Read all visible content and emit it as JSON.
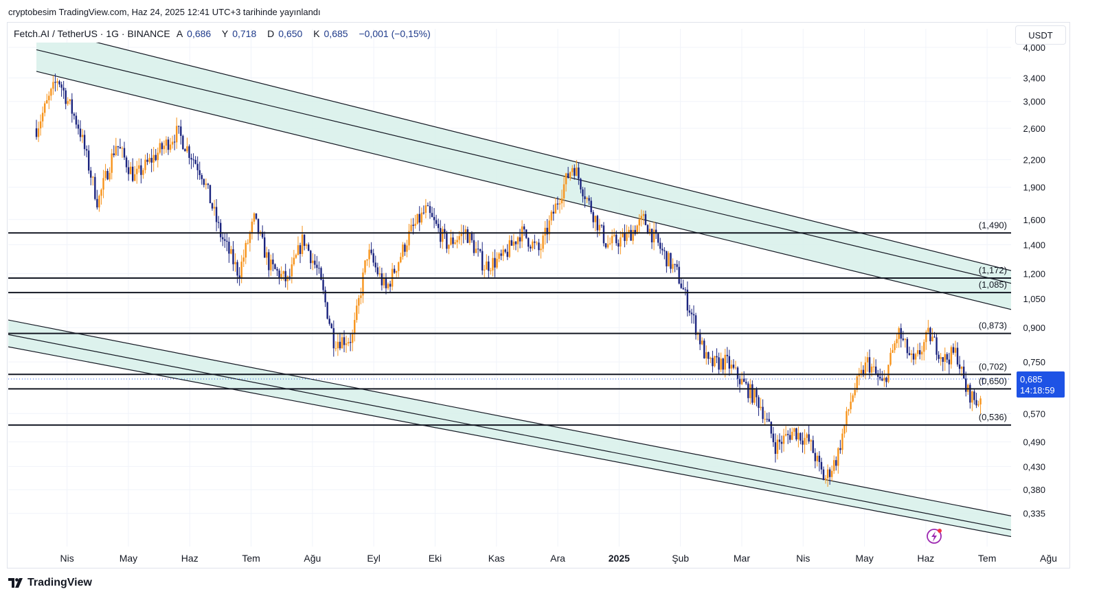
{
  "header": {
    "publisher_line": "cryptobesim TradingView.com, Haz 24, 2025 12:41 UTC+3 tarihinde yayınlandı"
  },
  "legend": {
    "symbol": "Fetch.AI / TetherUS · 1G · BINANCE",
    "open_label": "A",
    "open": "0,686",
    "high_label": "Y",
    "high": "0,718",
    "low_label": "D",
    "low": "0,650",
    "close_label": "K",
    "close": "0,685",
    "change": "−0,001 (−0,15%)"
  },
  "currency_button": "USDT",
  "brand": {
    "name": "TradingView",
    "icon": "tradingview-logo-icon"
  },
  "colors": {
    "up": "#f7931a",
    "down": "#1a237e",
    "channel_fill": "#d7f0ea",
    "price_tag": "#1e53e5",
    "grid": "#f0f3fa",
    "text": "#131722"
  },
  "chart_data": {
    "type": "candlestick",
    "symbol": "FETUSDT",
    "timeframe": "1D",
    "scale": "log",
    "ylim": [
      0.3,
      4.15
    ],
    "y_ticks": [
      {
        "v": 4.0,
        "label": "4,000"
      },
      {
        "v": 3.4,
        "label": "3,400"
      },
      {
        "v": 3.0,
        "label": "3,000"
      },
      {
        "v": 2.6,
        "label": "2,600"
      },
      {
        "v": 2.2,
        "label": "2,200"
      },
      {
        "v": 1.9,
        "label": "1,900"
      },
      {
        "v": 1.6,
        "label": "1,600"
      },
      {
        "v": 1.4,
        "label": "1,400"
      },
      {
        "v": 1.2,
        "label": "1,200"
      },
      {
        "v": 1.05,
        "label": "1,050"
      },
      {
        "v": 0.9,
        "label": "0,900"
      },
      {
        "v": 0.75,
        "label": "0,750"
      },
      {
        "v": 0.57,
        "label": "0,570"
      },
      {
        "v": 0.49,
        "label": "0,490"
      },
      {
        "v": 0.43,
        "label": "0,430"
      },
      {
        "v": 0.38,
        "label": "0,380"
      },
      {
        "v": 0.335,
        "label": "0,335"
      }
    ],
    "x_labels": [
      {
        "t": 0.5,
        "label": "Nis"
      },
      {
        "t": 1.5,
        "label": "May"
      },
      {
        "t": 2.5,
        "label": "Haz"
      },
      {
        "t": 3.5,
        "label": "Tem"
      },
      {
        "t": 4.5,
        "label": "Ağu"
      },
      {
        "t": 5.5,
        "label": "Eyl"
      },
      {
        "t": 6.5,
        "label": "Eki"
      },
      {
        "t": 7.5,
        "label": "Kas"
      },
      {
        "t": 8.5,
        "label": "Ara"
      },
      {
        "t": 9.5,
        "label": "2025",
        "bold": true
      },
      {
        "t": 10.5,
        "label": "Şub"
      },
      {
        "t": 11.5,
        "label": "Mar"
      },
      {
        "t": 12.5,
        "label": "Nis"
      },
      {
        "t": 13.5,
        "label": "May"
      },
      {
        "t": 14.5,
        "label": "Haz"
      },
      {
        "t": 15.5,
        "label": "Tem"
      },
      {
        "t": 16.5,
        "label": "Ağu"
      }
    ],
    "horizontal_levels": [
      {
        "v": 1.49,
        "label": "(1,490)"
      },
      {
        "v": 1.172,
        "label": "(1,172)"
      },
      {
        "v": 1.085,
        "label": "(1,085)"
      },
      {
        "v": 0.873,
        "label": "(0,873)"
      },
      {
        "v": 0.702,
        "label": "(0,702)"
      },
      {
        "v": 0.65,
        "label": "(0,650)"
      },
      {
        "v": 0.536,
        "label": "(0,536)"
      }
    ],
    "channels": [
      {
        "name": "upper-channel",
        "t0": 0.0,
        "t1": 16.4,
        "lines": [
          [
            4.45,
            1.17
          ],
          [
            3.95,
            1.095
          ],
          [
            3.52,
            0.952
          ]
        ]
      },
      {
        "name": "lower-channel",
        "t0": -0.5,
        "t1": 16.4,
        "lines": [
          [
            0.94,
            0.32
          ],
          [
            0.87,
            0.297
          ],
          [
            0.815,
            0.287
          ]
        ]
      }
    ],
    "last_price": {
      "value": "0,685",
      "v": 0.685,
      "countdown": "14:18:59"
    },
    "price_path": [
      [
        0.0,
        2.6
      ],
      [
        0.35,
        3.4
      ],
      [
        0.7,
        2.6
      ],
      [
        1.0,
        1.75
      ],
      [
        1.3,
        2.4
      ],
      [
        1.6,
        2.0
      ],
      [
        2.0,
        2.3
      ],
      [
        2.3,
        2.55
      ],
      [
        2.7,
        2.05
      ],
      [
        3.0,
        1.48
      ],
      [
        3.3,
        1.2
      ],
      [
        3.55,
        1.6
      ],
      [
        3.8,
        1.25
      ],
      [
        4.1,
        1.15
      ],
      [
        4.35,
        1.45
      ],
      [
        4.6,
        1.2
      ],
      [
        4.85,
        0.84
      ],
      [
        5.15,
        0.85
      ],
      [
        5.4,
        1.35
      ],
      [
        5.7,
        1.1
      ],
      [
        6.1,
        1.5
      ],
      [
        6.35,
        1.68
      ],
      [
        6.7,
        1.4
      ],
      [
        7.0,
        1.5
      ],
      [
        7.3,
        1.25
      ],
      [
        7.6,
        1.3
      ],
      [
        7.9,
        1.5
      ],
      [
        8.2,
        1.35
      ],
      [
        8.55,
        1.85
      ],
      [
        8.75,
        2.15
      ],
      [
        9.0,
        1.75
      ],
      [
        9.3,
        1.4
      ],
      [
        9.6,
        1.45
      ],
      [
        9.9,
        1.6
      ],
      [
        10.2,
        1.35
      ],
      [
        10.45,
        1.2
      ],
      [
        10.7,
        0.95
      ],
      [
        10.95,
        0.74
      ],
      [
        11.25,
        0.75
      ],
      [
        11.55,
        0.66
      ],
      [
        11.8,
        0.6
      ],
      [
        12.05,
        0.48
      ],
      [
        12.35,
        0.52
      ],
      [
        12.6,
        0.49
      ],
      [
        12.85,
        0.4
      ],
      [
        13.05,
        0.45
      ],
      [
        13.3,
        0.63
      ],
      [
        13.55,
        0.75
      ],
      [
        13.8,
        0.66
      ],
      [
        14.05,
        0.88
      ],
      [
        14.3,
        0.74
      ],
      [
        14.55,
        0.87
      ],
      [
        14.8,
        0.76
      ],
      [
        15.0,
        0.79
      ],
      [
        15.15,
        0.65
      ],
      [
        15.35,
        0.6
      ],
      [
        15.45,
        0.685
      ]
    ]
  }
}
